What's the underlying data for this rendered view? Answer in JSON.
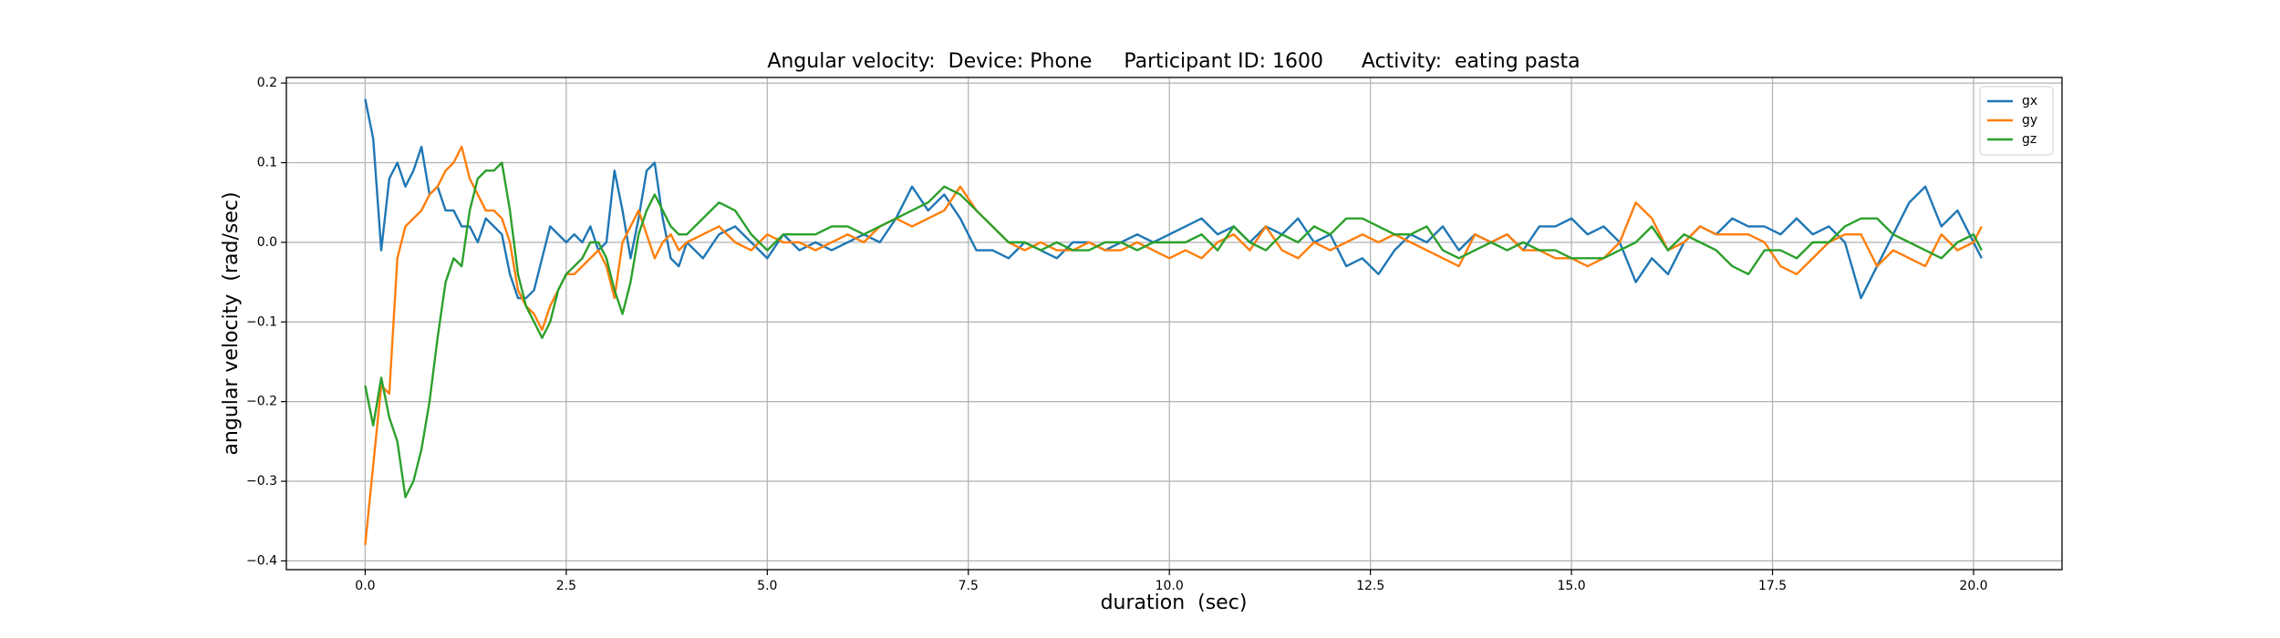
{
  "chart_data": {
    "type": "line",
    "title": "Angular velocity:  Device: Phone     Participant ID: 1600      Activity:  eating pasta",
    "x_label": "duration  (sec)",
    "y_label": "angular velocity  (rad/sec)",
    "x": [
      0.0,
      0.1,
      0.2,
      0.3,
      0.4,
      0.5,
      0.6,
      0.7,
      0.8,
      0.9,
      1.0,
      1.1,
      1.2,
      1.3,
      1.4,
      1.5,
      1.6,
      1.7,
      1.8,
      1.9,
      2.0,
      2.1,
      2.2,
      2.3,
      2.4,
      2.5,
      2.6,
      2.7,
      2.8,
      2.9,
      3.0,
      3.1,
      3.2,
      3.3,
      3.4,
      3.5,
      3.6,
      3.7,
      3.8,
      3.9,
      4.0,
      4.2,
      4.4,
      4.6,
      4.8,
      5.0,
      5.2,
      5.4,
      5.6,
      5.8,
      6.0,
      6.2,
      6.4,
      6.6,
      6.8,
      7.0,
      7.2,
      7.4,
      7.6,
      7.8,
      8.0,
      8.2,
      8.4,
      8.6,
      8.8,
      9.0,
      9.2,
      9.4,
      9.6,
      9.8,
      10.0,
      10.2,
      10.4,
      10.6,
      10.8,
      11.0,
      11.2,
      11.4,
      11.6,
      11.8,
      12.0,
      12.2,
      12.4,
      12.6,
      12.8,
      13.0,
      13.2,
      13.4,
      13.6,
      13.8,
      14.0,
      14.2,
      14.4,
      14.6,
      14.8,
      15.0,
      15.2,
      15.4,
      15.6,
      15.8,
      16.0,
      16.2,
      16.4,
      16.6,
      16.8,
      17.0,
      17.2,
      17.4,
      17.6,
      17.8,
      18.0,
      18.2,
      18.4,
      18.6,
      18.8,
      19.0,
      19.2,
      19.4,
      19.6,
      19.8,
      20.0,
      20.1
    ],
    "series": [
      {
        "name": "gx",
        "color": "#1f77b4",
        "values": [
          0.18,
          0.13,
          -0.01,
          0.08,
          0.1,
          0.07,
          0.09,
          0.12,
          0.06,
          0.07,
          0.04,
          0.04,
          0.02,
          0.02,
          0.0,
          0.03,
          0.02,
          0.01,
          -0.04,
          -0.07,
          -0.07,
          -0.06,
          -0.02,
          0.02,
          0.01,
          0.0,
          0.01,
          0.0,
          0.02,
          -0.01,
          0.0,
          0.09,
          0.04,
          -0.02,
          0.03,
          0.09,
          0.1,
          0.03,
          -0.02,
          -0.03,
          0.0,
          -0.02,
          0.01,
          0.02,
          0.0,
          -0.02,
          0.01,
          -0.01,
          0.0,
          -0.01,
          0.0,
          0.01,
          0.0,
          0.03,
          0.07,
          0.04,
          0.06,
          0.03,
          -0.01,
          -0.01,
          -0.02,
          0.0,
          -0.01,
          -0.02,
          0.0,
          0.0,
          -0.01,
          0.0,
          0.01,
          0.0,
          0.01,
          0.02,
          0.03,
          0.01,
          0.02,
          0.0,
          0.02,
          0.01,
          0.03,
          0.0,
          0.01,
          -0.03,
          -0.02,
          -0.04,
          -0.01,
          0.01,
          0.0,
          0.02,
          -0.01,
          0.01,
          0.0,
          0.01,
          -0.01,
          0.02,
          0.02,
          0.03,
          0.01,
          0.02,
          0.0,
          -0.05,
          -0.02,
          -0.04,
          0.0,
          0.02,
          0.01,
          0.03,
          0.02,
          0.02,
          0.01,
          0.03,
          0.01,
          0.02,
          0.0,
          -0.07,
          -0.03,
          0.01,
          0.05,
          0.07,
          0.02,
          0.04,
          0.0,
          -0.02
        ]
      },
      {
        "name": "gy",
        "color": "#ff7f0e",
        "values": [
          -0.38,
          -0.28,
          -0.18,
          -0.19,
          -0.02,
          0.02,
          0.03,
          0.04,
          0.06,
          0.07,
          0.09,
          0.1,
          0.12,
          0.08,
          0.06,
          0.04,
          0.04,
          0.03,
          0.0,
          -0.06,
          -0.08,
          -0.09,
          -0.11,
          -0.08,
          -0.06,
          -0.04,
          -0.04,
          -0.03,
          -0.02,
          -0.01,
          -0.03,
          -0.07,
          0.0,
          0.02,
          0.04,
          0.01,
          -0.02,
          0.0,
          0.01,
          -0.01,
          0.0,
          0.01,
          0.02,
          0.0,
          -0.01,
          0.01,
          0.0,
          0.0,
          -0.01,
          0.0,
          0.01,
          0.0,
          0.02,
          0.03,
          0.02,
          0.03,
          0.04,
          0.07,
          0.04,
          0.02,
          0.0,
          -0.01,
          0.0,
          -0.01,
          -0.01,
          0.0,
          -0.01,
          -0.01,
          0.0,
          -0.01,
          -0.02,
          -0.01,
          -0.02,
          0.0,
          0.01,
          -0.01,
          0.02,
          -0.01,
          -0.02,
          0.0,
          -0.01,
          0.0,
          0.01,
          0.0,
          0.01,
          0.0,
          -0.01,
          -0.02,
          -0.03,
          0.01,
          0.0,
          0.01,
          -0.01,
          -0.01,
          -0.02,
          -0.02,
          -0.03,
          -0.02,
          0.0,
          0.05,
          0.03,
          -0.01,
          0.0,
          0.02,
          0.01,
          0.01,
          0.01,
          0.0,
          -0.03,
          -0.04,
          -0.02,
          0.0,
          0.01,
          0.01,
          -0.03,
          -0.01,
          -0.02,
          -0.03,
          0.01,
          -0.01,
          0.0,
          0.02
        ]
      },
      {
        "name": "gz",
        "color": "#2ca02c",
        "values": [
          -0.18,
          -0.23,
          -0.17,
          -0.22,
          -0.25,
          -0.32,
          -0.3,
          -0.26,
          -0.2,
          -0.12,
          -0.05,
          -0.02,
          -0.03,
          0.04,
          0.08,
          0.09,
          0.09,
          0.1,
          0.04,
          -0.04,
          -0.08,
          -0.1,
          -0.12,
          -0.1,
          -0.06,
          -0.04,
          -0.03,
          -0.02,
          0.0,
          0.0,
          -0.02,
          -0.06,
          -0.09,
          -0.05,
          0.01,
          0.04,
          0.06,
          0.04,
          0.02,
          0.01,
          0.01,
          0.03,
          0.05,
          0.04,
          0.01,
          -0.01,
          0.01,
          0.01,
          0.01,
          0.02,
          0.02,
          0.01,
          0.02,
          0.03,
          0.04,
          0.05,
          0.07,
          0.06,
          0.04,
          0.02,
          0.0,
          0.0,
          -0.01,
          0.0,
          -0.01,
          -0.01,
          0.0,
          0.0,
          -0.01,
          0.0,
          0.0,
          0.0,
          0.01,
          -0.01,
          0.02,
          0.0,
          -0.01,
          0.01,
          0.0,
          0.02,
          0.01,
          0.03,
          0.03,
          0.02,
          0.01,
          0.01,
          0.02,
          -0.01,
          -0.02,
          -0.01,
          0.0,
          -0.01,
          0.0,
          -0.01,
          -0.01,
          -0.02,
          -0.02,
          -0.02,
          -0.01,
          0.0,
          0.02,
          -0.01,
          0.01,
          0.0,
          -0.01,
          -0.03,
          -0.04,
          -0.01,
          -0.01,
          -0.02,
          0.0,
          0.0,
          0.02,
          0.03,
          0.03,
          0.01,
          0.0,
          -0.01,
          -0.02,
          0.0,
          0.01,
          -0.01
        ]
      }
    ],
    "xlim": [
      -0.98,
      21.1
    ],
    "ylim": [
      -0.411,
      0.207
    ],
    "xticks": [
      {
        "value": 0,
        "label": "0.0"
      },
      {
        "value": 2.5,
        "label": "2.5"
      },
      {
        "value": 5,
        "label": "5.0"
      },
      {
        "value": 7.5,
        "label": "7.5"
      },
      {
        "value": 10,
        "label": "10.0"
      },
      {
        "value": 12.5,
        "label": "12.5"
      },
      {
        "value": 15,
        "label": "15.0"
      },
      {
        "value": 17.5,
        "label": "17.5"
      },
      {
        "value": 20,
        "label": "20.0"
      }
    ],
    "yticks": [
      {
        "value": -0.4,
        "label": "−0.4"
      },
      {
        "value": -0.3,
        "label": "−0.3"
      },
      {
        "value": -0.2,
        "label": "−0.2"
      },
      {
        "value": -0.1,
        "label": "−0.1"
      },
      {
        "value": 0,
        "label": "0.0"
      },
      {
        "value": 0.1,
        "label": "0.1"
      },
      {
        "value": 0.2,
        "label": "0.2"
      }
    ],
    "grid": true,
    "legend": "upper right"
  }
}
